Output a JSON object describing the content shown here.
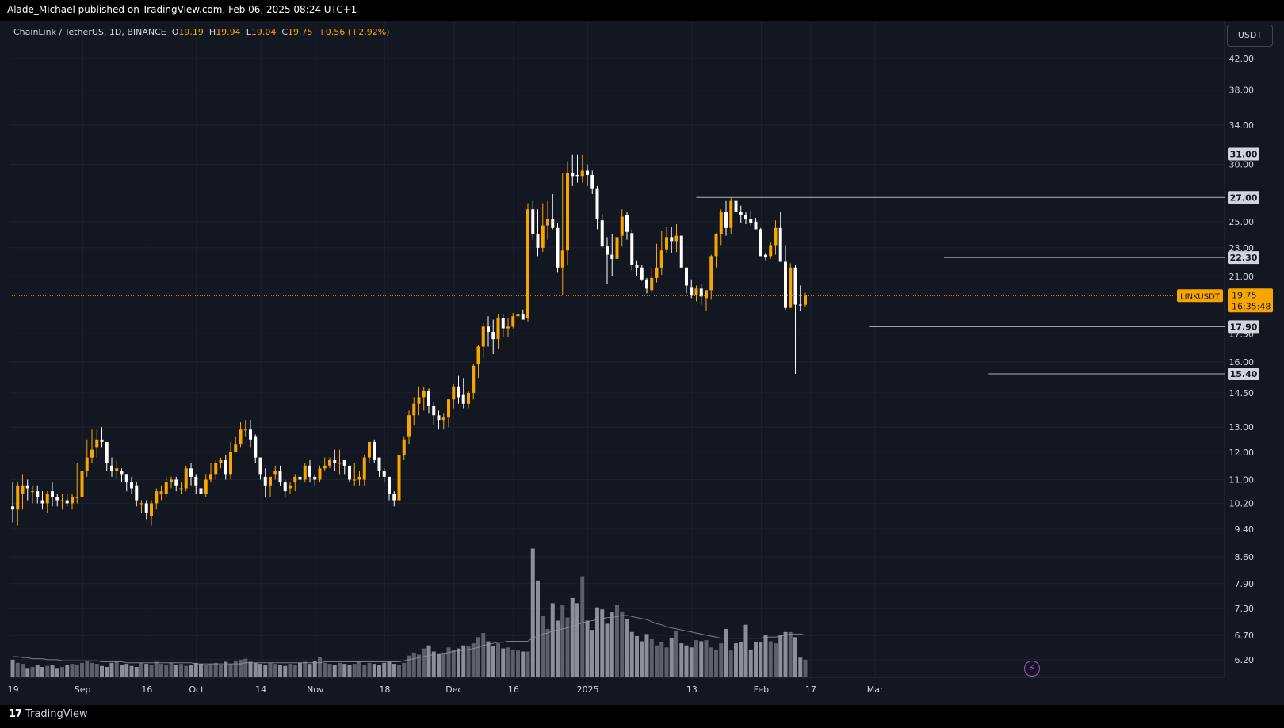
{
  "header": {
    "published_by": "Alade_Michael published on TradingView.com, Feb 06, 2025 08:24 UTC+1"
  },
  "footer": {
    "brand": "TradingView"
  },
  "legend": {
    "symbol": "ChainLink / TetherUS, 1D, BINANCE",
    "open_label": "O",
    "open": "19.19",
    "high_label": "H",
    "high": "19.94",
    "low_label": "L",
    "low": "19.04",
    "close_label": "C",
    "close": "19.75",
    "change": "+0.56 (+2.92%)"
  },
  "price_scale": {
    "currency": "USDT"
  },
  "colors": {
    "up": "#f7a600",
    "down": "#ffffff",
    "background": "#131722",
    "grid": "#1e222d",
    "text": "#d1d4dc",
    "level_line": "#b2b5be"
  },
  "chart_data": {
    "type": "candlestick",
    "symbol": "LINKUSDT",
    "timeframe": "1D",
    "price_axis": {
      "scale": "log",
      "ticks": [
        "42.00",
        "38.00",
        "34.00",
        "30.00",
        "25.00",
        "23.00",
        "21.00",
        "17.50",
        "16.00",
        "14.50",
        "13.00",
        "12.00",
        "11.00",
        "10.20",
        "9.40",
        "8.60",
        "7.90",
        "7.30",
        "6.70",
        "6.20"
      ]
    },
    "time_axis": {
      "ticks": [
        "19",
        "Sep",
        "16",
        "Oct",
        "14",
        "Nov",
        "18",
        "Dec",
        "16",
        "2025",
        "13",
        "Feb",
        "17",
        "Mar"
      ]
    },
    "horizontal_levels": [
      "31.00",
      "27.00",
      "22.30",
      "17.90",
      "15.40"
    ],
    "last_price": {
      "symbol_label": "LINKUSDT",
      "value": "19.75",
      "countdown": "16:35:48"
    },
    "volume_moving_average": true,
    "candles": {
      "open": [
        10.1,
        10.0,
        10.5,
        10.8,
        10.6,
        10.6,
        10.3,
        10.2,
        10.6,
        10.4,
        10.3,
        10.3,
        10.2,
        10.4,
        10.4,
        11.3,
        11.8,
        12.2,
        12.5,
        12.4,
        11.5,
        11.3,
        11.3,
        11.2,
        10.9,
        10.8,
        10.2,
        10.2,
        9.8,
        10.2,
        10.5,
        10.5,
        10.9,
        11.0,
        10.7,
        10.7,
        11.4,
        11.1,
        10.7,
        10.5,
        11.0,
        11.2,
        11.6,
        11.7,
        11.2,
        12.0,
        12.3,
        12.9,
        12.9,
        12.6,
        11.8,
        11.1,
        10.8,
        11.2,
        11.3,
        10.9,
        10.7,
        10.9,
        11.1,
        11.0,
        11.5,
        11.1,
        11.0,
        11.4,
        11.5,
        11.7,
        11.6,
        11.7,
        11.5,
        11.0,
        11.0,
        11.0,
        11.8,
        12.4,
        11.8,
        11.3,
        11.1,
        10.5,
        10.3,
        11.9,
        12.6,
        13.5,
        14.0,
        14.3,
        14.6,
        13.9,
        13.5,
        13.3,
        13.4,
        14.2,
        14.8,
        14.4,
        14.0,
        14.5,
        15.9,
        16.8,
        17.9,
        17.6,
        17.2,
        18.4,
        17.8,
        17.9,
        18.5,
        18.6,
        18.4,
        26.0,
        24.0,
        23.0,
        24.7,
        25.2,
        24.5,
        21.6,
        22.8,
        29.2,
        29.0,
        28.9,
        29.4,
        29.0,
        27.8,
        25.1,
        23.1,
        22.5,
        22.2,
        23.9,
        25.5,
        24.1,
        21.8,
        21.6,
        20.8,
        20.1,
        20.9,
        21.6,
        22.9,
        23.8,
        23.5,
        23.9,
        21.6,
        20.3,
        19.8,
        20.2,
        19.6,
        20.1,
        22.4,
        24.0,
        25.8,
        24.5,
        26.7,
        25.8,
        25.5,
        25.2,
        25.0,
        24.4,
        22.5,
        22.4,
        23.2,
        24.5,
        22.0,
        19.0,
        21.6,
        19.2,
        19.19
      ],
      "high": [
        10.9,
        10.9,
        11.2,
        11.0,
        10.8,
        10.8,
        10.6,
        10.6,
        10.9,
        10.5,
        10.5,
        10.5,
        10.5,
        11.6,
        11.9,
        12.5,
        12.9,
        12.9,
        13.0,
        12.4,
        11.8,
        11.7,
        11.4,
        11.2,
        11.1,
        10.9,
        10.3,
        10.3,
        10.3,
        10.7,
        10.8,
        11.1,
        11.1,
        11.1,
        10.9,
        11.5,
        11.6,
        11.2,
        10.8,
        11.2,
        11.6,
        11.7,
        11.8,
        11.9,
        12.4,
        12.6,
        13.2,
        13.3,
        13.3,
        12.7,
        11.8,
        11.4,
        11.0,
        11.5,
        11.5,
        11.0,
        10.9,
        11.2,
        11.3,
        11.6,
        11.7,
        11.2,
        11.5,
        11.8,
        11.8,
        12.1,
        12.1,
        11.7,
        11.5,
        11.6,
        11.3,
        11.9,
        12.4,
        12.5,
        11.8,
        11.4,
        11.1,
        10.6,
        11.8,
        12.6,
        13.7,
        14.3,
        14.8,
        14.8,
        14.7,
        14.1,
        13.7,
        13.6,
        14.2,
        14.9,
        15.3,
        15.2,
        14.6,
        15.9,
        16.9,
        18.1,
        18.5,
        18.3,
        18.6,
        18.6,
        18.4,
        18.7,
        18.9,
        18.9,
        26.5,
        26.7,
        26.0,
        26.5,
        26.7,
        27.3,
        24.9,
        29.2,
        30.3,
        30.9,
        30.9,
        30.9,
        30.0,
        29.4,
        28.0,
        25.6,
        23.8,
        24.0,
        24.9,
        26.0,
        25.8,
        24.4,
        22.1,
        21.8,
        20.9,
        21.6,
        23.3,
        24.3,
        24.6,
        24.6,
        24.8,
        23.9,
        21.6,
        20.8,
        20.4,
        20.5,
        20.1,
        22.5,
        24.1,
        26.0,
        26.7,
        27.0,
        27.1,
        26.3,
        25.8,
        25.9,
        25.3,
        24.5,
        22.6,
        23.4,
        25.1,
        25.8,
        23.2,
        21.9,
        21.8,
        20.4,
        19.94
      ],
      "low": [
        9.6,
        9.5,
        10.0,
        10.3,
        10.2,
        10.2,
        10.0,
        9.9,
        10.1,
        10.1,
        10.0,
        10.1,
        10.0,
        10.2,
        10.3,
        11.1,
        11.6,
        11.8,
        12.2,
        11.3,
        11.1,
        11.0,
        10.9,
        10.6,
        10.5,
        10.1,
        9.9,
        9.7,
        9.5,
        10.0,
        10.3,
        10.4,
        10.7,
        10.6,
        10.5,
        10.6,
        10.8,
        10.5,
        10.3,
        10.4,
        10.9,
        11.0,
        11.4,
        11.0,
        11.0,
        12.0,
        12.2,
        12.6,
        12.2,
        11.6,
        11.0,
        10.4,
        10.4,
        11.0,
        10.8,
        10.4,
        10.5,
        10.6,
        10.8,
        10.9,
        10.9,
        10.8,
        10.9,
        11.3,
        11.4,
        11.3,
        11.2,
        11.2,
        10.9,
        10.8,
        10.8,
        10.8,
        11.6,
        11.6,
        11.1,
        10.9,
        10.3,
        10.1,
        10.2,
        11.7,
        12.3,
        13.1,
        13.5,
        13.7,
        13.6,
        13.1,
        12.9,
        12.9,
        13.0,
        13.8,
        14.0,
        13.8,
        13.8,
        14.2,
        15.2,
        16.2,
        16.8,
        16.4,
        16.7,
        17.3,
        17.3,
        17.8,
        18.0,
        18.3,
        18.2,
        23.6,
        22.4,
        22.7,
        23.6,
        24.4,
        21.3,
        19.8,
        21.8,
        28.0,
        28.3,
        28.3,
        28.0,
        27.3,
        24.4,
        23.0,
        20.5,
        21.0,
        21.3,
        23.1,
        23.6,
        21.4,
        21.0,
        20.7,
        19.9,
        20.0,
        20.6,
        21.1,
        22.6,
        22.6,
        22.7,
        21.6,
        19.9,
        19.6,
        19.4,
        19.2,
        18.8,
        19.5,
        21.6,
        23.2,
        23.9,
        24.0,
        25.2,
        24.9,
        24.8,
        24.7,
        24.4,
        22.4,
        22.1,
        22.2,
        22.5,
        23.4,
        18.9,
        19.0,
        15.4,
        18.8,
        19.04
      ],
      "close": [
        10.0,
        10.8,
        10.8,
        10.7,
        10.6,
        10.4,
        10.2,
        10.5,
        10.4,
        10.3,
        10.3,
        10.2,
        10.4,
        10.4,
        11.3,
        11.8,
        12.1,
        12.5,
        12.4,
        11.6,
        11.3,
        11.4,
        11.2,
        10.9,
        10.7,
        10.3,
        10.2,
        9.9,
        10.2,
        10.6,
        10.6,
        10.9,
        11.0,
        10.8,
        10.7,
        11.4,
        11.1,
        10.8,
        10.5,
        11.0,
        11.2,
        11.6,
        11.7,
        11.2,
        12.0,
        12.3,
        12.9,
        12.9,
        12.5,
        11.8,
        11.2,
        10.8,
        11.1,
        11.3,
        10.9,
        10.6,
        10.8,
        11.1,
        11.0,
        11.5,
        11.1,
        11.0,
        11.4,
        11.5,
        11.7,
        11.6,
        11.6,
        11.5,
        11.0,
        11.0,
        11.1,
        11.8,
        12.4,
        11.7,
        11.3,
        11.1,
        10.5,
        10.3,
        11.9,
        12.5,
        13.5,
        14.0,
        14.3,
        14.6,
        13.9,
        13.5,
        13.3,
        13.4,
        14.2,
        14.8,
        14.3,
        14.0,
        14.5,
        15.8,
        16.8,
        17.9,
        17.6,
        17.2,
        18.4,
        17.8,
        17.9,
        18.5,
        18.6,
        18.3,
        26.0,
        24.0,
        23.0,
        24.7,
        25.2,
        24.5,
        21.6,
        22.8,
        29.2,
        28.9,
        28.9,
        29.4,
        29.0,
        27.8,
        25.2,
        23.1,
        22.5,
        22.2,
        23.8,
        25.4,
        24.2,
        21.8,
        21.6,
        20.8,
        20.2,
        20.9,
        21.6,
        22.8,
        23.8,
        23.5,
        23.9,
        21.6,
        20.4,
        19.8,
        20.2,
        19.7,
        20.1,
        22.4,
        24.0,
        25.8,
        24.5,
        26.7,
        25.8,
        25.5,
        25.2,
        24.9,
        24.4,
        22.4,
        22.3,
        23.2,
        24.5,
        22.0,
        19.0,
        21.6,
        19.2,
        19.19,
        19.75
      ],
      "volume": [
        17,
        14,
        13,
        9,
        10,
        12,
        10,
        11,
        12,
        9,
        10,
        12,
        13,
        12,
        14,
        16,
        14,
        13,
        11,
        10,
        14,
        15,
        12,
        13,
        11,
        10,
        14,
        13,
        12,
        15,
        13,
        12,
        14,
        12,
        13,
        11,
        12,
        14,
        13,
        12,
        13,
        14,
        12,
        15,
        13,
        16,
        17,
        18,
        15,
        14,
        13,
        12,
        14,
        13,
        12,
        11,
        13,
        12,
        14,
        15,
        13,
        16,
        20,
        14,
        13,
        12,
        14,
        13,
        12,
        13,
        15,
        12,
        14,
        13,
        12,
        14,
        15,
        13,
        12,
        14,
        21,
        24,
        22,
        28,
        31,
        25,
        23,
        24,
        29,
        27,
        28,
        31,
        30,
        33,
        39,
        43,
        35,
        30,
        33,
        28,
        29,
        27,
        26,
        25,
        25,
        125,
        94,
        60,
        47,
        72,
        55,
        70,
        58,
        77,
        72,
        98,
        55,
        46,
        68,
        66,
        52,
        63,
        70,
        64,
        57,
        44,
        40,
        35,
        42,
        37,
        31,
        34,
        29,
        38,
        45,
        33,
        31,
        29,
        36,
        35,
        36,
        29,
        27,
        33,
        47,
        26,
        33,
        34,
        51,
        27,
        34,
        34,
        41,
        35,
        33,
        41,
        44,
        44,
        39,
        19,
        17
      ],
      "volume_ma": [
        20,
        20,
        19,
        19,
        18,
        18,
        18,
        17,
        17,
        17,
        16,
        16,
        16,
        16,
        16,
        16,
        16,
        16,
        15,
        15,
        15,
        15,
        15,
        14,
        14,
        14,
        14,
        14,
        14,
        14,
        14,
        14,
        14,
        14,
        14,
        14,
        14,
        13,
        13,
        13,
        13,
        13,
        13,
        13,
        13,
        13,
        13,
        14,
        14,
        14,
        14,
        14,
        14,
        14,
        14,
        14,
        14,
        14,
        14,
        14,
        14,
        14,
        14,
        15,
        15,
        15,
        15,
        15,
        15,
        15,
        15,
        15,
        15,
        15,
        15,
        15,
        15,
        15,
        15,
        16,
        17,
        18,
        19,
        20,
        21,
        22,
        23,
        23,
        24,
        25,
        26,
        26,
        27,
        28,
        29,
        31,
        32,
        33,
        34,
        34,
        35,
        35,
        35,
        35,
        35,
        38,
        40,
        42,
        43,
        45,
        46,
        47,
        48,
        50,
        51,
        53,
        54,
        55,
        56,
        57,
        58,
        58,
        59,
        60,
        60,
        59,
        58,
        57,
        56,
        54,
        52,
        51,
        49,
        48,
        47,
        46,
        45,
        44,
        43,
        42,
        41,
        40,
        39,
        38,
        38,
        38,
        38,
        38,
        38,
        38,
        38,
        38,
        39,
        39,
        39,
        40,
        41,
        42,
        42,
        42,
        41
      ]
    }
  }
}
